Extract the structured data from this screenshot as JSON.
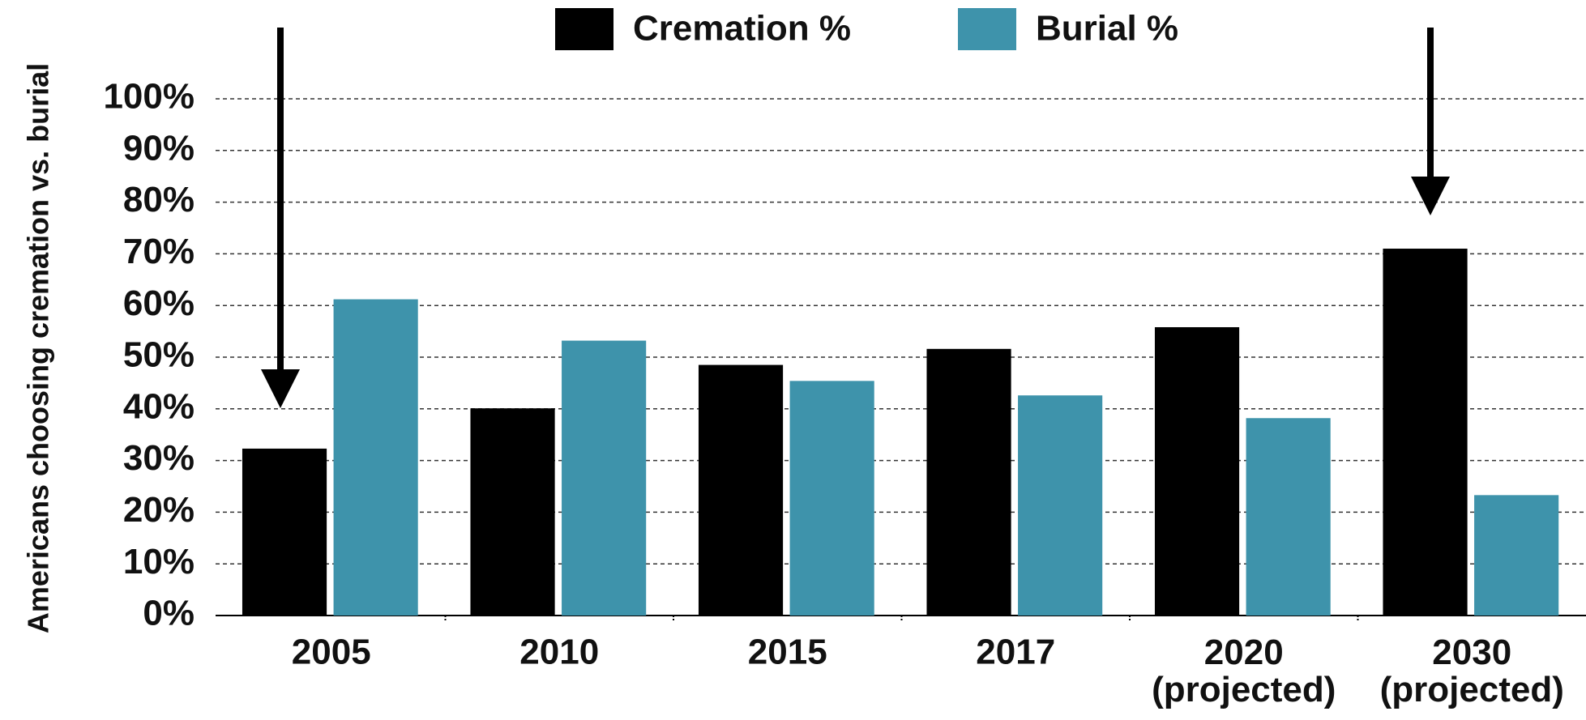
{
  "chart_data": {
    "type": "bar",
    "y_label": "Americans choosing cremation vs. burial",
    "categories": [
      "2005",
      "2010",
      "2015",
      "2017",
      "2020\n(projected)",
      "2030\n(projected)"
    ],
    "series": [
      {
        "name": "Cremation %",
        "color": "#000000",
        "values": [
          32.3,
          40.1,
          48.5,
          51.6,
          55.8,
          71
        ]
      },
      {
        "name": "Burial %",
        "color": "#3e93ab",
        "values": [
          61.2,
          53.2,
          45.4,
          42.6,
          38.2,
          23.3
        ]
      }
    ],
    "ylim": [
      0,
      100
    ],
    "yticks": [
      {
        "value": 0,
        "label": "0%"
      },
      {
        "value": 10,
        "label": "10%"
      },
      {
        "value": 20,
        "label": "20%"
      },
      {
        "value": 30,
        "label": "30%"
      },
      {
        "value": 40,
        "label": "40%"
      },
      {
        "value": 50,
        "label": "50%"
      },
      {
        "value": 60,
        "label": "60%"
      },
      {
        "value": 70,
        "label": "70%"
      },
      {
        "value": 80,
        "label": "80%"
      },
      {
        "value": 90,
        "label": "90%"
      },
      {
        "value": 100,
        "label": "100%"
      }
    ],
    "grid": true,
    "legend": "top"
  }
}
